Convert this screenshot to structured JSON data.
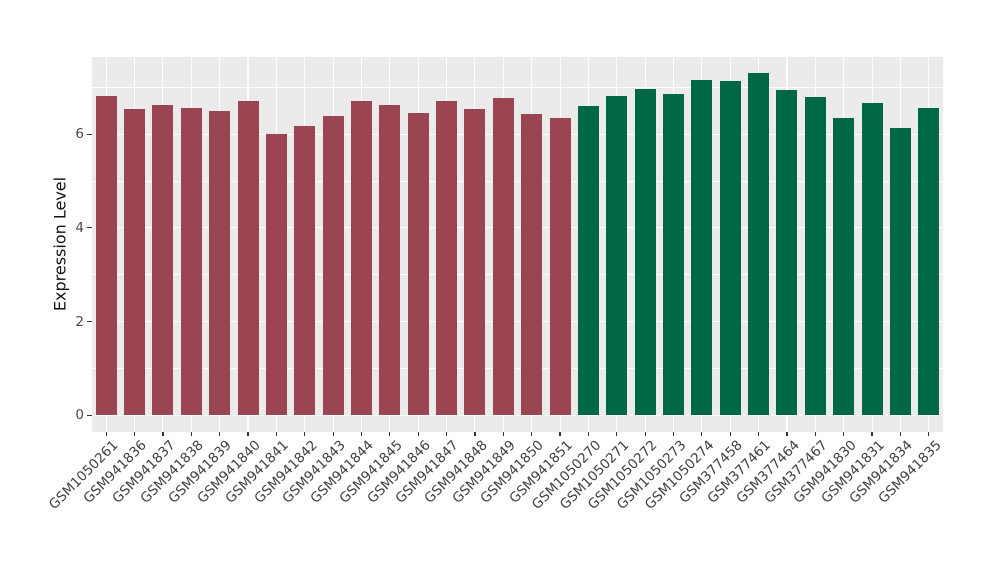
{
  "chart_data": {
    "type": "bar",
    "title": "",
    "xlabel": "",
    "ylabel": "Expression Level",
    "ylim": [
      -0.36,
      7.65
    ],
    "yticks": [
      0,
      2,
      4,
      6
    ],
    "yticks_minor": [
      1,
      3,
      5,
      7
    ],
    "grid": true,
    "legend_position": "none",
    "panel_bg": "#EBEBEB",
    "grid_color": "#FFFFFF",
    "tick_color": "#333333",
    "series": [
      {
        "name": "group-1",
        "color": "#9B4452",
        "categories": [
          "GSM1050261",
          "GSM941836",
          "GSM941837",
          "GSM941838",
          "GSM941839",
          "GSM941840",
          "GSM941841",
          "GSM941842",
          "GSM941843",
          "GSM941844",
          "GSM941845",
          "GSM941846",
          "GSM941847",
          "GSM941848",
          "GSM941849",
          "GSM941850",
          "GSM941851"
        ],
        "values": [
          6.82,
          6.53,
          6.62,
          6.56,
          6.49,
          6.7,
          6.0,
          6.18,
          6.38,
          6.71,
          6.62,
          6.45,
          6.72,
          6.53,
          6.77,
          6.43,
          6.35
        ]
      },
      {
        "name": "group-2",
        "color": "#006847",
        "categories": [
          "GSM1050270",
          "GSM1050271",
          "GSM1050272",
          "GSM1050273",
          "GSM1050274",
          "GSM377458",
          "GSM377461",
          "GSM377464",
          "GSM377467",
          "GSM941830",
          "GSM941831",
          "GSM941834",
          "GSM941835"
        ],
        "values": [
          6.6,
          6.82,
          6.96,
          6.87,
          7.15,
          7.14,
          7.3,
          6.95,
          6.79,
          6.35,
          6.67,
          6.13,
          6.55
        ]
      }
    ]
  }
}
